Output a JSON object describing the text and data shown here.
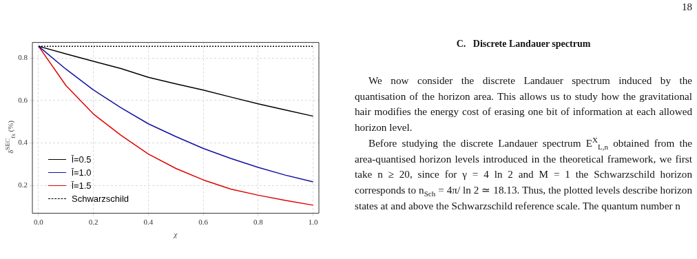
{
  "chart_data": {
    "type": "line",
    "xlabel": "χ",
    "ylabel": "δ$^{SEC}$$_{fs}$ (%)",
    "x": [
      0,
      0.1,
      0.2,
      0.3,
      0.4,
      0.5,
      0.6,
      0.7,
      0.8,
      0.9,
      1.0
    ],
    "series": [
      {
        "name": "l̄=0.5",
        "color": "#000000",
        "line_style": "solid",
        "values": [
          0.855,
          0.819,
          0.784,
          0.75,
          0.709,
          0.678,
          0.649,
          0.616,
          0.584,
          0.555,
          0.526
        ]
      },
      {
        "name": "l̄=1.0",
        "color": "#1010a0",
        "line_style": "solid",
        "values": [
          0.855,
          0.747,
          0.649,
          0.566,
          0.49,
          0.43,
          0.374,
          0.327,
          0.285,
          0.248,
          0.217
        ]
      },
      {
        "name": "l̄=1.5",
        "color": "#e00000",
        "line_style": "solid",
        "values": [
          0.855,
          0.67,
          0.536,
          0.436,
          0.348,
          0.28,
          0.226,
          0.183,
          0.154,
          0.129,
          0.107
        ]
      },
      {
        "name": "Schwarzschild",
        "color": "#000000",
        "line_style": "dotted",
        "values": [
          0.855,
          0.855,
          0.855,
          0.855,
          0.855,
          0.855,
          0.855,
          0.855,
          0.855,
          0.855,
          0.855
        ]
      }
    ],
    "xlim": [
      -0.0225,
      1.021
    ],
    "xticks": [
      {
        "value": 0,
        "label": "0.0"
      },
      0.2,
      0.4,
      0.6,
      0.8,
      {
        "value": 1,
        "label": "1.0"
      }
    ],
    "ylim": [
      0.069,
      0.873
    ],
    "yticks": [
      0.2,
      0.4,
      0.6,
      0.8
    ],
    "grid": true,
    "legend": "bottom left",
    "annotations": [
      "18",
      "C.   Discrete Landauer spectrum",
      "We now consider the discrete Landauer spectrum induced by the quantisation of the horizon area. This allows us to study how the gravitational hair modifies the energy cost of erasing one bit of information at each allowed horizon level.",
      "Before studying the discrete Landauer spectrum E$^{X}$$_{L,n}$ obtained from the area-quantised horizon levels introduced in the theoretical framework, we first take n ≥ 20, since for γ = 4 ln 2 and M = 1 the Schwarzschild horizon corresponds to n$_{Sch}$ = 4π/ ln 2 ≃ 18.13. Thus, the plotted levels describe horizon states at and above the Schwarzschild reference scale. The quantum number n"
    ]
  }
}
